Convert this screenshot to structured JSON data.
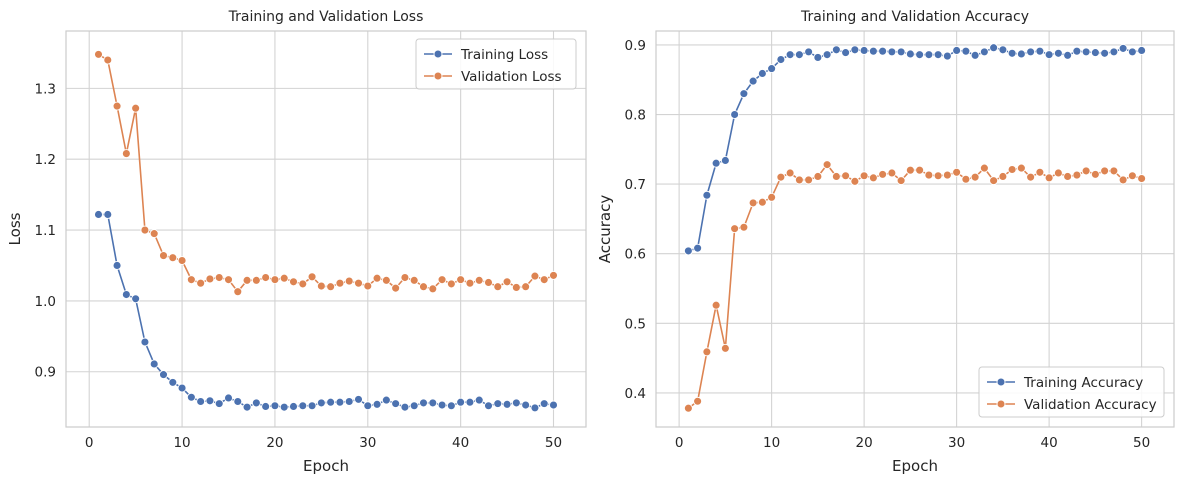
{
  "chart_data": [
    {
      "type": "line",
      "title": "Training and Validation Loss",
      "xlabel": "Epoch",
      "ylabel": "Loss",
      "xlim": [
        -2.5,
        53.5
      ],
      "ylim": [
        0.822,
        1.381
      ],
      "xticks": [
        0,
        10,
        20,
        30,
        40,
        50
      ],
      "xtick_labels": [
        "0",
        "10",
        "20",
        "30",
        "40",
        "50"
      ],
      "yticks": [
        0.9,
        1.0,
        1.1,
        1.2,
        1.3
      ],
      "ytick_labels": [
        "0.9",
        "1.0",
        "1.1",
        "1.2",
        "1.3"
      ],
      "grid": true,
      "legend_position": "top-right",
      "x": [
        1,
        2,
        3,
        4,
        5,
        6,
        7,
        8,
        9,
        10,
        11,
        12,
        13,
        14,
        15,
        16,
        17,
        18,
        19,
        20,
        21,
        22,
        23,
        24,
        25,
        26,
        27,
        28,
        29,
        30,
        31,
        32,
        33,
        34,
        35,
        36,
        37,
        38,
        39,
        40,
        41,
        42,
        43,
        44,
        45,
        46,
        47,
        48,
        49,
        50
      ],
      "series": [
        {
          "name": "Training Loss",
          "color": "#4c72b0",
          "values": [
            1.122,
            1.122,
            1.05,
            1.009,
            1.003,
            0.942,
            0.911,
            0.896,
            0.885,
            0.877,
            0.864,
            0.858,
            0.859,
            0.855,
            0.863,
            0.858,
            0.85,
            0.856,
            0.851,
            0.852,
            0.85,
            0.851,
            0.852,
            0.852,
            0.856,
            0.857,
            0.857,
            0.858,
            0.861,
            0.852,
            0.854,
            0.86,
            0.855,
            0.85,
            0.852,
            0.856,
            0.856,
            0.853,
            0.852,
            0.857,
            0.857,
            0.86,
            0.852,
            0.855,
            0.854,
            0.856,
            0.853,
            0.849,
            0.855,
            0.853
          ]
        },
        {
          "name": "Validation Loss",
          "color": "#dd8452",
          "values": [
            1.348,
            1.34,
            1.275,
            1.208,
            1.272,
            1.1,
            1.095,
            1.064,
            1.061,
            1.057,
            1.03,
            1.025,
            1.031,
            1.033,
            1.03,
            1.013,
            1.029,
            1.029,
            1.033,
            1.03,
            1.032,
            1.027,
            1.024,
            1.034,
            1.021,
            1.02,
            1.025,
            1.028,
            1.025,
            1.021,
            1.032,
            1.029,
            1.018,
            1.033,
            1.029,
            1.02,
            1.017,
            1.03,
            1.024,
            1.03,
            1.025,
            1.029,
            1.026,
            1.02,
            1.027,
            1.019,
            1.02,
            1.035,
            1.03,
            1.036
          ]
        }
      ]
    },
    {
      "type": "line",
      "title": "Training and Validation Accuracy",
      "xlabel": "Epoch",
      "ylabel": "Accuracy",
      "xlim": [
        -2.5,
        53.5
      ],
      "ylim": [
        0.351,
        0.92
      ],
      "xticks": [
        0,
        10,
        20,
        30,
        40,
        50
      ],
      "xtick_labels": [
        "0",
        "10",
        "20",
        "30",
        "40",
        "50"
      ],
      "yticks": [
        0.4,
        0.5,
        0.6,
        0.7,
        0.8,
        0.9
      ],
      "ytick_labels": [
        "0.4",
        "0.5",
        "0.6",
        "0.7",
        "0.8",
        "0.9"
      ],
      "grid": true,
      "legend_position": "bottom-right",
      "x": [
        1,
        2,
        3,
        4,
        5,
        6,
        7,
        8,
        9,
        10,
        11,
        12,
        13,
        14,
        15,
        16,
        17,
        18,
        19,
        20,
        21,
        22,
        23,
        24,
        25,
        26,
        27,
        28,
        29,
        30,
        31,
        32,
        33,
        34,
        35,
        36,
        37,
        38,
        39,
        40,
        41,
        42,
        43,
        44,
        45,
        46,
        47,
        48,
        49,
        50
      ],
      "series": [
        {
          "name": "Training Accuracy",
          "color": "#4c72b0",
          "values": [
            0.604,
            0.608,
            0.684,
            0.73,
            0.734,
            0.8,
            0.83,
            0.848,
            0.859,
            0.866,
            0.879,
            0.886,
            0.886,
            0.89,
            0.882,
            0.886,
            0.893,
            0.889,
            0.893,
            0.892,
            0.891,
            0.891,
            0.89,
            0.89,
            0.887,
            0.886,
            0.886,
            0.886,
            0.884,
            0.892,
            0.891,
            0.885,
            0.89,
            0.896,
            0.893,
            0.888,
            0.887,
            0.89,
            0.891,
            0.886,
            0.888,
            0.885,
            0.891,
            0.89,
            0.889,
            0.888,
            0.89,
            0.895,
            0.89,
            0.892
          ]
        },
        {
          "name": "Validation Accuracy",
          "color": "#dd8452",
          "values": [
            0.378,
            0.388,
            0.459,
            0.526,
            0.464,
            0.636,
            0.638,
            0.673,
            0.674,
            0.681,
            0.71,
            0.716,
            0.706,
            0.706,
            0.711,
            0.728,
            0.711,
            0.712,
            0.704,
            0.712,
            0.709,
            0.714,
            0.716,
            0.705,
            0.72,
            0.72,
            0.713,
            0.712,
            0.713,
            0.717,
            0.707,
            0.71,
            0.723,
            0.705,
            0.711,
            0.721,
            0.723,
            0.71,
            0.717,
            0.709,
            0.716,
            0.711,
            0.713,
            0.719,
            0.714,
            0.719,
            0.719,
            0.706,
            0.712,
            0.708
          ]
        }
      ]
    }
  ]
}
